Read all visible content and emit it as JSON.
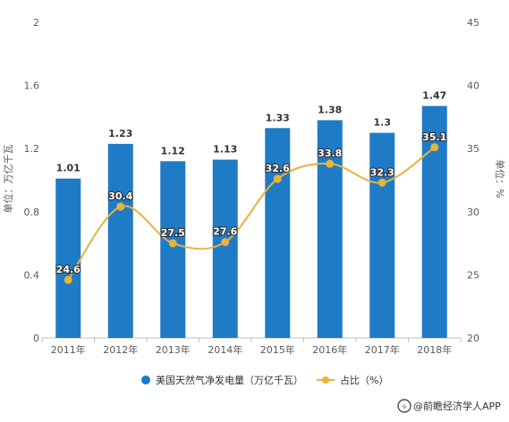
{
  "chart_data": {
    "type": "bar",
    "categories": [
      "2011年",
      "2012年",
      "2013年",
      "2014年",
      "2015年",
      "2016年",
      "2017年",
      "2018年"
    ],
    "series": [
      {
        "name": "美国天然气净发电量（万亿千瓦）",
        "type": "bar",
        "axis": "left",
        "values": [
          1.01,
          1.23,
          1.12,
          1.13,
          1.33,
          1.38,
          1.3,
          1.47
        ],
        "color": "#1f7bc6"
      },
      {
        "name": "占比（%）",
        "type": "line",
        "axis": "right",
        "values": [
          24.6,
          30.4,
          27.5,
          27.6,
          32.6,
          33.8,
          32.3,
          35.1
        ],
        "color": "#e8b33c"
      }
    ],
    "ylabel": "单位：万亿千瓦",
    "y2label": "单位：%",
    "ylim": [
      0,
      2
    ],
    "y_ticks": [
      "0",
      "0.4",
      "0.8",
      "1.2",
      "1.6",
      "2"
    ],
    "y2lim": [
      20,
      45
    ],
    "y2_ticks": [
      "20",
      "25",
      "30",
      "35",
      "40",
      "45"
    ],
    "grid": false,
    "legend_position": "bottom"
  },
  "legend": {
    "bar_label": "美国天然气净发电量（万亿千瓦）",
    "line_label": "占比（%）"
  },
  "footer": {
    "source": "@前瞻经济学人APP"
  }
}
